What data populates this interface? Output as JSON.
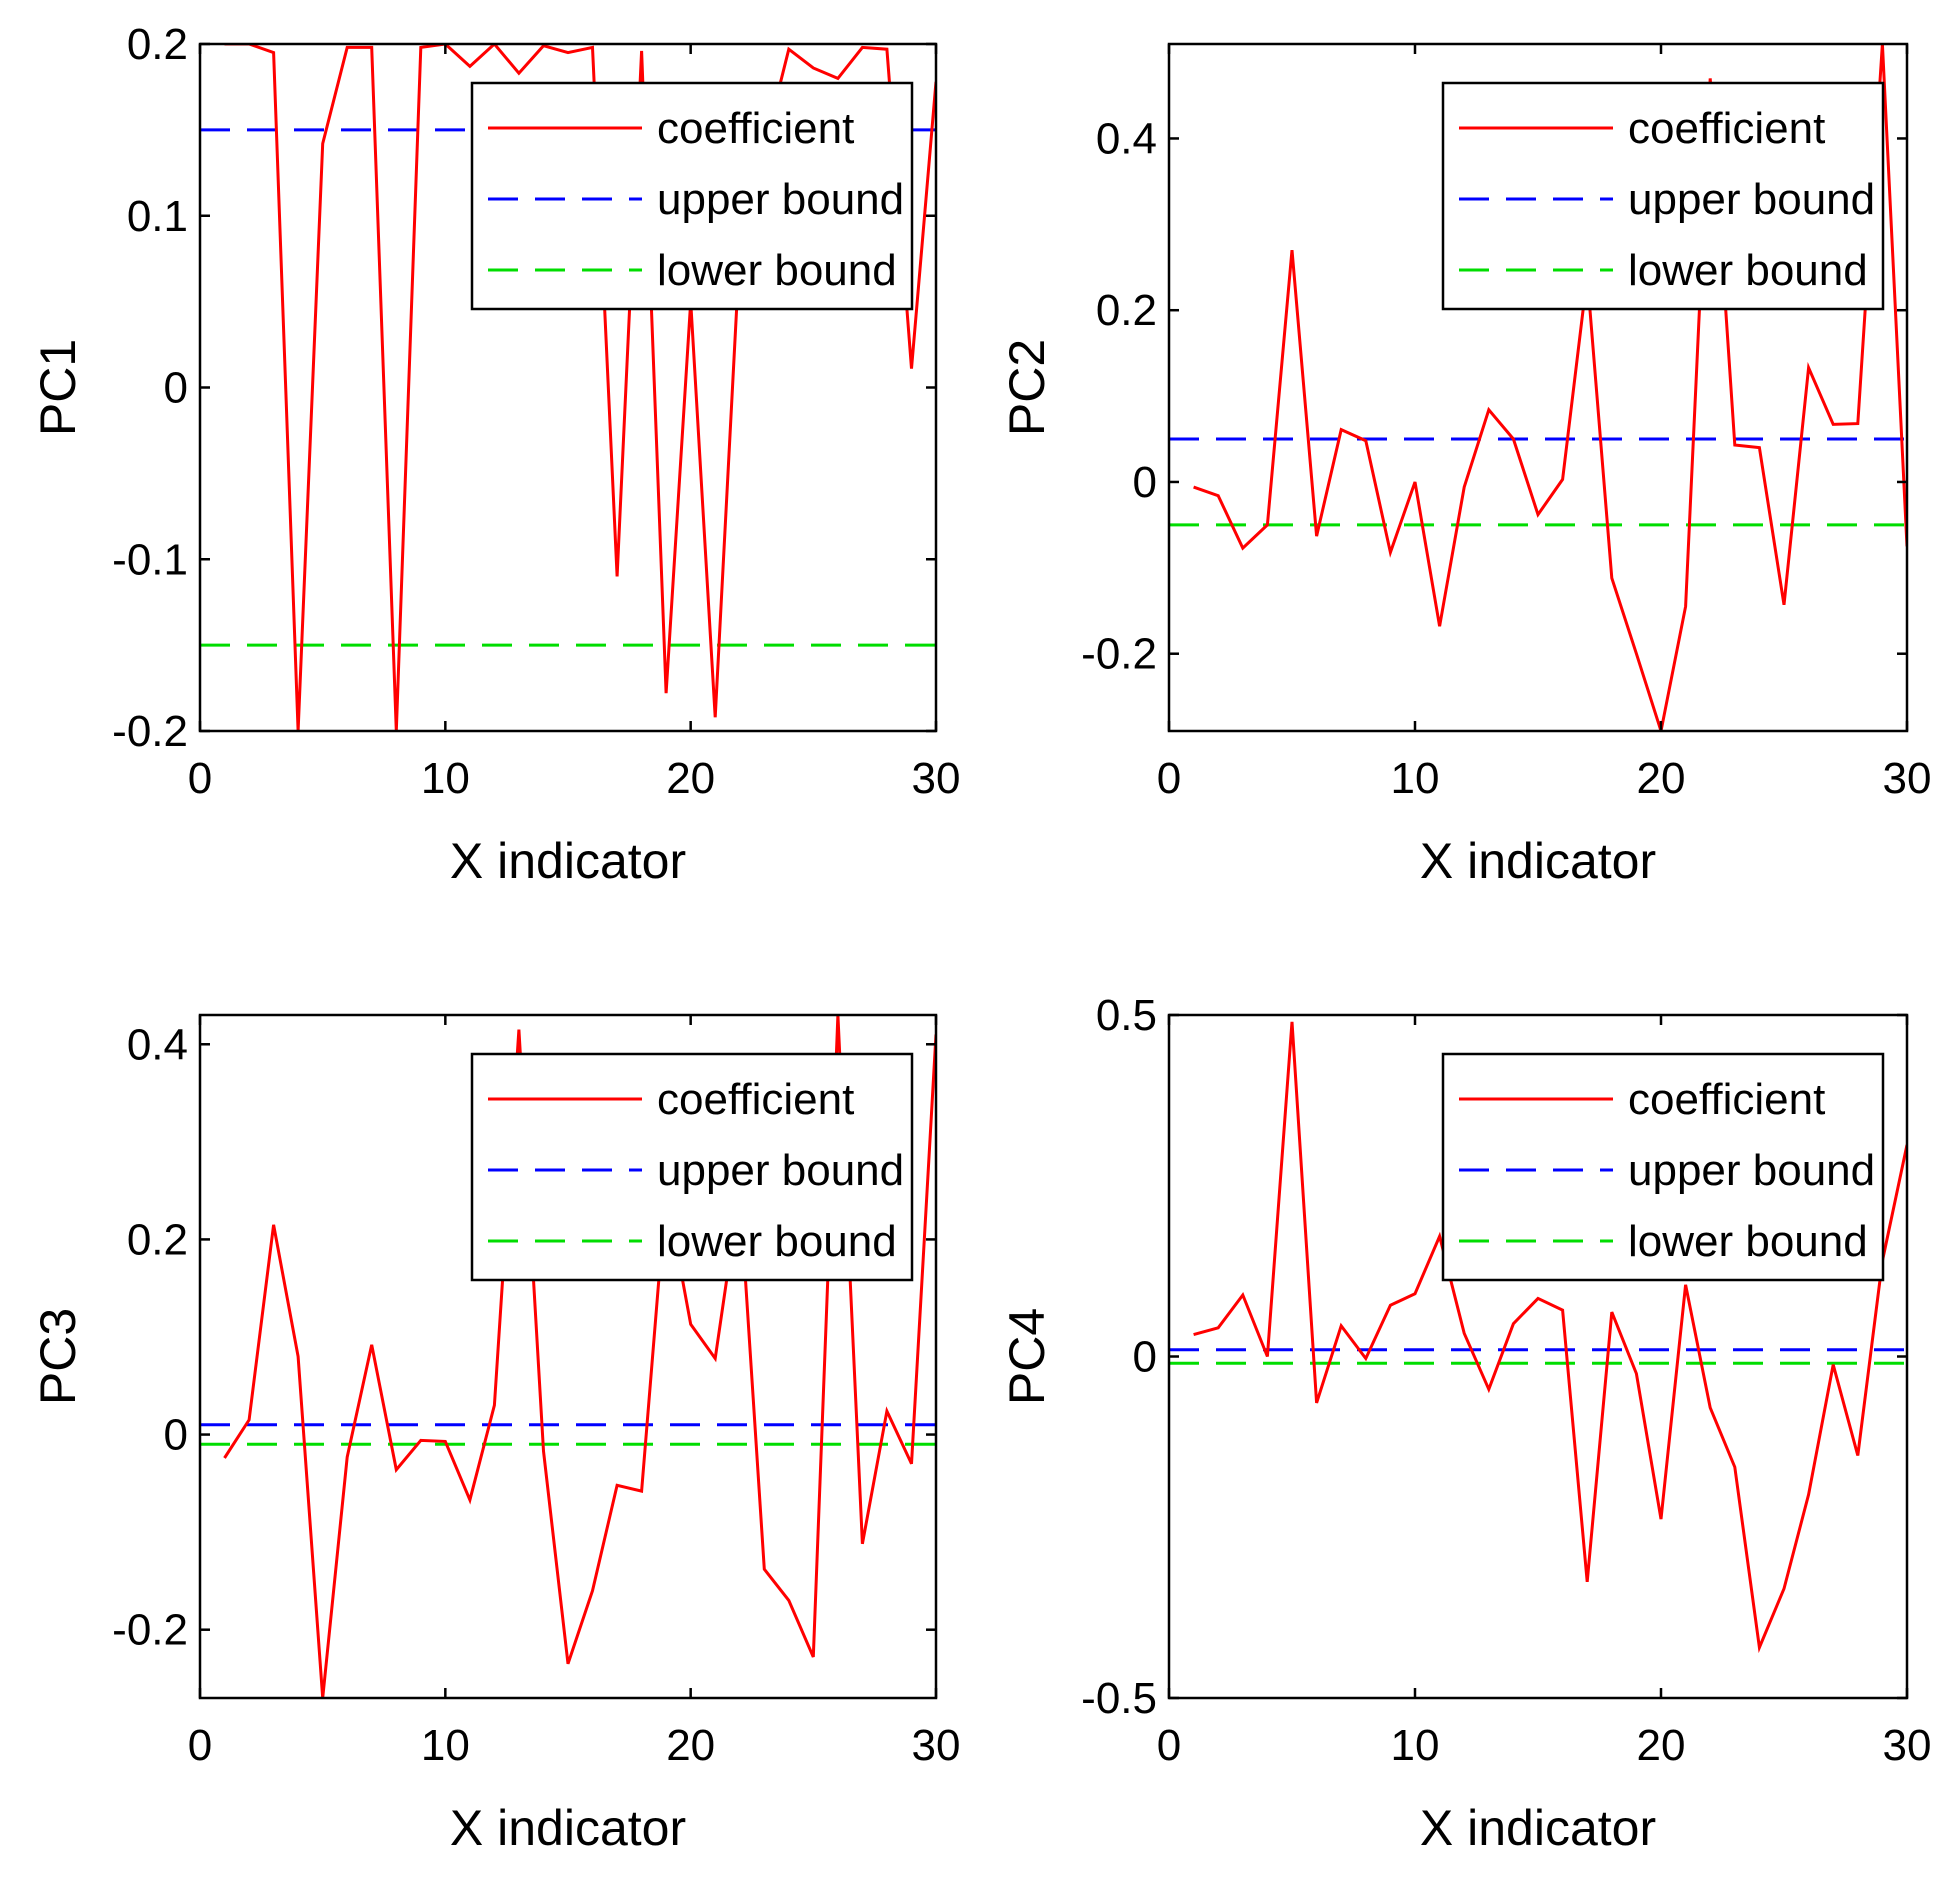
{
  "colors": {
    "coefficient": "#ff0000",
    "upper": "#0000ff",
    "lower": "#00dd00",
    "axis": "#000000",
    "background": "#ffffff"
  },
  "chart_data": [
    {
      "type": "line",
      "title": "",
      "xlabel": "X indicator",
      "ylabel": "PC1",
      "xlim": [
        0,
        30
      ],
      "ylim": [
        -0.2,
        0.2
      ],
      "xticks": [
        0,
        10,
        20,
        30
      ],
      "xtick_labels": [
        "0",
        "10",
        "20",
        "30"
      ],
      "yticks": [
        -0.2,
        -0.1,
        0,
        0.1,
        0.2
      ],
      "ytick_labels": [
        "-0.2",
        "-0.1",
        "0",
        "0.1",
        "0.2"
      ],
      "grid": false,
      "legend_position": "top-right",
      "series": [
        {
          "name": "coefficient",
          "style": "solid",
          "x": [
            1,
            2,
            3,
            4,
            5,
            6,
            7,
            8,
            9,
            10,
            11,
            12,
            13,
            14,
            15,
            16,
            17,
            18,
            19,
            20,
            21,
            22,
            23,
            24,
            25,
            26,
            27,
            28,
            29,
            30
          ],
          "values": [
            0.2,
            0.2,
            0.195,
            -0.2,
            0.142,
            0.198,
            0.198,
            -0.2,
            0.198,
            0.2,
            0.187,
            0.2,
            0.183,
            0.199,
            0.195,
            0.198,
            -0.11,
            0.196,
            -0.178,
            0.05,
            -0.192,
            0.08,
            0.14,
            0.197,
            0.186,
            0.18,
            0.198,
            0.197,
            0.011,
            0.178
          ]
        },
        {
          "name": "upper bound",
          "style": "dashed",
          "x": [
            1,
            30
          ],
          "values": [
            0.15,
            0.15
          ]
        },
        {
          "name": "lower bound",
          "style": "dashed",
          "x": [
            1,
            30
          ],
          "values": [
            -0.15,
            -0.15
          ]
        }
      ]
    },
    {
      "type": "line",
      "title": "",
      "xlabel": "X indicator",
      "ylabel": "PC2",
      "xlim": [
        0,
        30
      ],
      "ylim": [
        -0.29,
        0.51
      ],
      "xticks": [
        0,
        10,
        20,
        30
      ],
      "xtick_labels": [
        "0",
        "10",
        "20",
        "30"
      ],
      "yticks": [
        -0.2,
        0,
        0.2,
        0.4
      ],
      "ytick_labels": [
        "-0.2",
        "0",
        "0.2",
        "0.4"
      ],
      "grid": false,
      "legend_position": "top-right",
      "series": [
        {
          "name": "coefficient",
          "style": "solid",
          "x": [
            1,
            2,
            3,
            4,
            5,
            6,
            7,
            8,
            9,
            10,
            11,
            12,
            13,
            14,
            15,
            16,
            17,
            18,
            19,
            20,
            21,
            22,
            23,
            24,
            25,
            26,
            27,
            28,
            29,
            30
          ],
          "values": [
            -0.006,
            -0.016,
            -0.077,
            -0.05,
            0.27,
            -0.063,
            0.061,
            0.048,
            -0.082,
            0.0,
            -0.168,
            -0.006,
            0.084,
            0.05,
            -0.038,
            0.003,
            0.24,
            -0.112,
            -0.2,
            -0.29,
            -0.145,
            0.47,
            0.043,
            0.04,
            -0.143,
            0.133,
            0.067,
            0.068,
            0.51,
            -0.075
          ]
        },
        {
          "name": "upper bound",
          "style": "dashed",
          "x": [
            1,
            30
          ],
          "values": [
            0.05,
            0.05
          ]
        },
        {
          "name": "lower bound",
          "style": "dashed",
          "x": [
            1,
            30
          ],
          "values": [
            -0.05,
            -0.05
          ]
        }
      ]
    },
    {
      "type": "line",
      "title": "",
      "xlabel": "X indicator",
      "ylabel": "PC3",
      "xlim": [
        0,
        30
      ],
      "ylim": [
        -0.27,
        0.43
      ],
      "xticks": [
        0,
        10,
        20,
        30
      ],
      "xtick_labels": [
        "0",
        "10",
        "20",
        "30"
      ],
      "yticks": [
        -0.2,
        0,
        0.2,
        0.4
      ],
      "ytick_labels": [
        "-0.2",
        "0",
        "0.2",
        "0.4"
      ],
      "grid": false,
      "legend_position": "top-right",
      "series": [
        {
          "name": "coefficient",
          "style": "solid",
          "x": [
            1,
            2,
            3,
            4,
            5,
            6,
            7,
            8,
            9,
            10,
            11,
            12,
            13,
            14,
            15,
            16,
            17,
            18,
            19,
            20,
            21,
            22,
            23,
            24,
            25,
            26,
            27,
            28,
            29,
            30
          ],
          "values": [
            -0.024,
            0.015,
            0.215,
            0.08,
            -0.27,
            -0.023,
            0.092,
            -0.036,
            -0.006,
            -0.007,
            -0.067,
            0.03,
            0.415,
            -0.017,
            -0.235,
            -0.16,
            -0.052,
            -0.058,
            0.25,
            0.113,
            0.078,
            0.25,
            -0.138,
            -0.17,
            -0.228,
            0.43,
            -0.112,
            0.024,
            -0.03,
            0.41
          ]
        },
        {
          "name": "upper bound",
          "style": "dashed",
          "x": [
            1,
            30
          ],
          "values": [
            0.01,
            0.01
          ]
        },
        {
          "name": "lower bound",
          "style": "dashed",
          "x": [
            1,
            30
          ],
          "values": [
            -0.01,
            -0.01
          ]
        }
      ]
    },
    {
      "type": "line",
      "title": "",
      "xlabel": "X indicator",
      "ylabel": "PC4",
      "xlim": [
        0,
        30
      ],
      "ylim": [
        -0.5,
        0.5
      ],
      "xticks": [
        0,
        10,
        20,
        30
      ],
      "xtick_labels": [
        "0",
        "10",
        "20",
        "30"
      ],
      "yticks": [
        -0.5,
        0,
        0.5
      ],
      "ytick_labels": [
        "-0.5",
        "0",
        "0.5"
      ],
      "grid": false,
      "legend_position": "top-right",
      "series": [
        {
          "name": "coefficient",
          "style": "solid",
          "x": [
            1,
            2,
            3,
            4,
            5,
            6,
            7,
            8,
            9,
            10,
            11,
            12,
            13,
            14,
            15,
            16,
            17,
            18,
            19,
            20,
            21,
            22,
            23,
            24,
            25,
            26,
            27,
            28,
            29,
            30
          ],
          "values": [
            0.032,
            0.042,
            0.09,
            0.0,
            0.49,
            -0.068,
            0.045,
            -0.003,
            0.075,
            0.092,
            0.176,
            0.034,
            -0.048,
            0.048,
            0.085,
            0.068,
            -0.33,
            0.065,
            -0.025,
            -0.238,
            0.105,
            -0.075,
            -0.162,
            -0.426,
            -0.34,
            -0.202,
            -0.012,
            -0.145,
            0.14,
            0.31
          ]
        },
        {
          "name": "upper bound",
          "style": "dashed",
          "x": [
            1,
            30
          ],
          "values": [
            0.01,
            0.01
          ]
        },
        {
          "name": "lower bound",
          "style": "dashed",
          "x": [
            1,
            30
          ],
          "values": [
            -0.01,
            -0.01
          ]
        }
      ]
    }
  ]
}
